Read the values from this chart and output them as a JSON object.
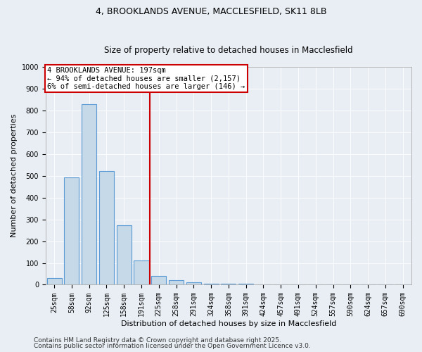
{
  "title1": "4, BROOKLANDS AVENUE, MACCLESFIELD, SK11 8LB",
  "title2": "Size of property relative to detached houses in Macclesfield",
  "xlabel": "Distribution of detached houses by size in Macclesfield",
  "ylabel": "Number of detached properties",
  "categories": [
    "25sqm",
    "58sqm",
    "92sqm",
    "125sqm",
    "158sqm",
    "191sqm",
    "225sqm",
    "258sqm",
    "291sqm",
    "324sqm",
    "358sqm",
    "391sqm",
    "424sqm",
    "457sqm",
    "491sqm",
    "524sqm",
    "557sqm",
    "590sqm",
    "624sqm",
    "657sqm",
    "690sqm"
  ],
  "values": [
    32,
    492,
    830,
    522,
    272,
    110,
    40,
    22,
    12,
    5,
    5,
    5,
    0,
    0,
    0,
    0,
    0,
    0,
    0,
    0,
    0
  ],
  "bar_color": "#c5d9e8",
  "bar_edge_color": "#5b9bd5",
  "vline_x": 5.5,
  "vline_color": "#cc0000",
  "annotation_text": "4 BROOKLANDS AVENUE: 197sqm\n← 94% of detached houses are smaller (2,157)\n6% of semi-detached houses are larger (146) →",
  "annotation_box_color": "#ffffff",
  "annotation_box_edge": "#cc0000",
  "ylim": [
    0,
    1000
  ],
  "yticks": [
    0,
    100,
    200,
    300,
    400,
    500,
    600,
    700,
    800,
    900,
    1000
  ],
  "background_color": "#e8eef4",
  "plot_bg_color": "#e8eef4",
  "footer1": "Contains HM Land Registry data © Crown copyright and database right 2025.",
  "footer2": "Contains public sector information licensed under the Open Government Licence v3.0.",
  "title1_fontsize": 9,
  "title2_fontsize": 8.5,
  "xlabel_fontsize": 8,
  "ylabel_fontsize": 8,
  "tick_fontsize": 7,
  "annotation_fontsize": 7.5,
  "footer_fontsize": 6.5
}
